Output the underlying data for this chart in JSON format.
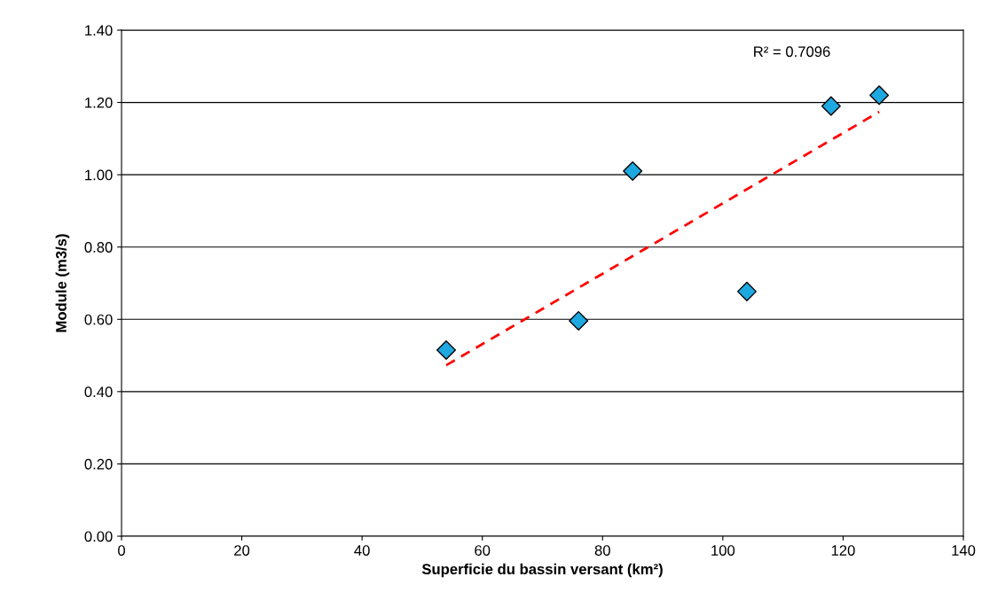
{
  "chart_data": {
    "type": "scatter",
    "xlabel": "Superficie du bassin versant (km²)",
    "ylabel": "Module (m3/s)",
    "xlim": [
      0,
      140
    ],
    "xticks": [
      0,
      20,
      40,
      60,
      80,
      100,
      120,
      140
    ],
    "ylim": [
      0,
      1.4
    ],
    "yticks": [
      {
        "value": 0,
        "label": "0.00"
      },
      {
        "value": 0.2,
        "label": "0.20"
      },
      {
        "value": 0.4,
        "label": "0.40"
      },
      {
        "value": 0.6,
        "label": "0.60"
      },
      {
        "value": 0.8,
        "label": "0.80"
      },
      {
        "value": 1.0,
        "label": "1.00"
      },
      {
        "value": 1.2,
        "label": "1.20"
      },
      {
        "value": 1.4,
        "label": "1.40"
      }
    ],
    "grid": "y",
    "marker": "diamond",
    "series": [
      {
        "color": "#1ea8e0",
        "x": [
          54,
          76,
          85,
          104,
          118,
          126
        ],
        "values": [
          0.515,
          0.596,
          1.01,
          0.677,
          1.19,
          1.22
        ]
      },
      {
        "type": "line",
        "color": "#ff0000",
        "line_style": "dashed",
        "marker": "none",
        "x": [
          54,
          126
        ],
        "values": [
          0.473,
          1.174
        ]
      }
    ],
    "annotations": [
      "R² = 0.7096"
    ]
  }
}
